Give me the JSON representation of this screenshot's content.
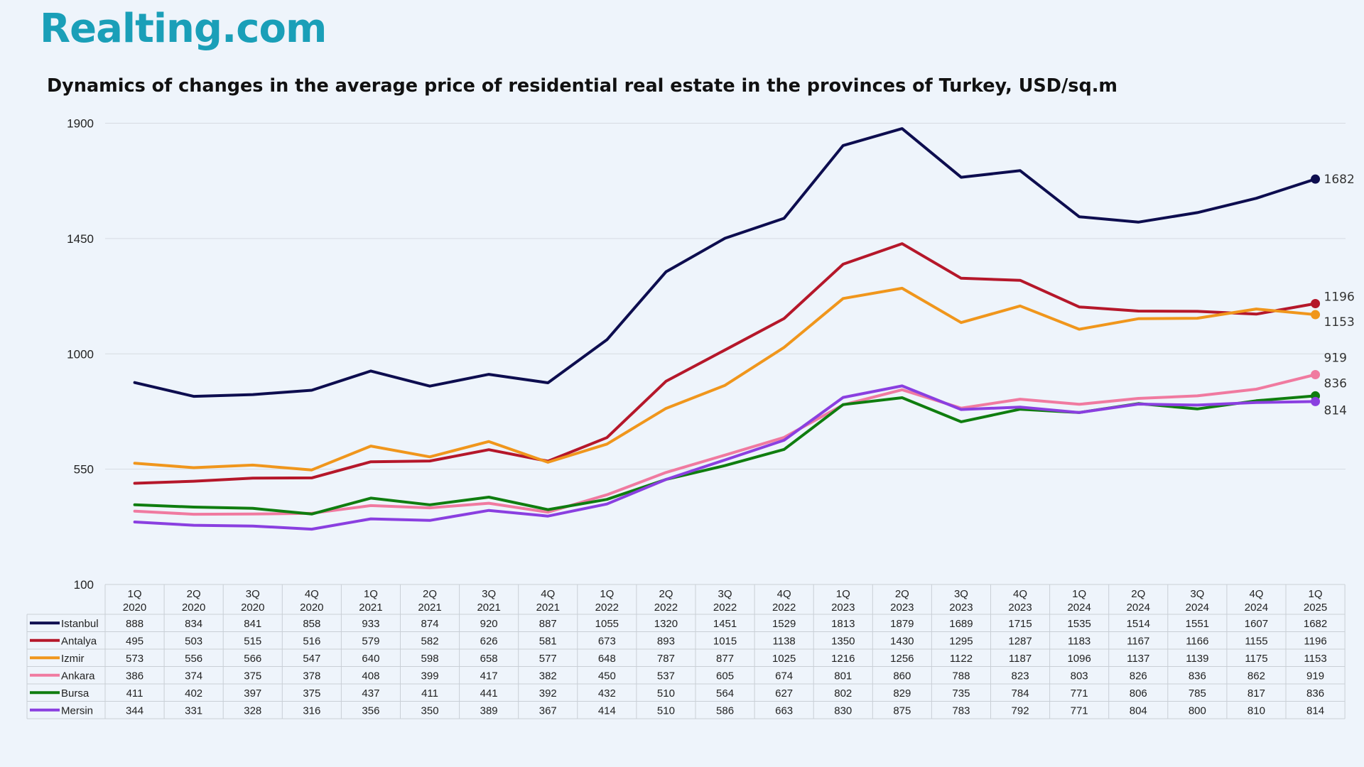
{
  "brand": {
    "logo_text": "Realting.com"
  },
  "chart_data": {
    "type": "line",
    "title": "Dynamics of changes in the average price of residential real estate in the provinces of Turkey, USD/sq.m",
    "ylim": [
      100,
      1900
    ],
    "yticks": [
      100,
      550,
      1000,
      1450,
      1900
    ],
    "grid": true,
    "legend": "data-table",
    "categories": [
      [
        "1Q",
        "2020"
      ],
      [
        "2Q",
        "2020"
      ],
      [
        "3Q",
        "2020"
      ],
      [
        "4Q",
        "2020"
      ],
      [
        "1Q",
        "2021"
      ],
      [
        "2Q",
        "2021"
      ],
      [
        "3Q",
        "2021"
      ],
      [
        "4Q",
        "2021"
      ],
      [
        "1Q",
        "2022"
      ],
      [
        "2Q",
        "2022"
      ],
      [
        "3Q",
        "2022"
      ],
      [
        "4Q",
        "2022"
      ],
      [
        "1Q",
        "2023"
      ],
      [
        "2Q",
        "2023"
      ],
      [
        "3Q",
        "2023"
      ],
      [
        "4Q",
        "2023"
      ],
      [
        "1Q",
        "2024"
      ],
      [
        "2Q",
        "2024"
      ],
      [
        "3Q",
        "2024"
      ],
      [
        "4Q",
        "2024"
      ],
      [
        "1Q",
        "2025"
      ]
    ],
    "series": [
      {
        "name": "Istanbul",
        "color": "#0d0d4f",
        "end_label": "1682",
        "values": [
          888,
          834,
          841,
          858,
          933,
          874,
          920,
          887,
          1055,
          1320,
          1451,
          1529,
          1813,
          1879,
          1689,
          1715,
          1535,
          1514,
          1551,
          1607,
          1682
        ]
      },
      {
        "name": "Antalya",
        "color": "#b5172a",
        "end_label": "1196",
        "values": [
          495,
          503,
          515,
          516,
          579,
          582,
          626,
          581,
          673,
          893,
          1015,
          1138,
          1350,
          1430,
          1295,
          1287,
          1183,
          1167,
          1166,
          1155,
          1196
        ]
      },
      {
        "name": "Izmir",
        "color": "#f0961c",
        "end_label": "1153",
        "values": [
          573,
          556,
          566,
          547,
          640,
          598,
          658,
          577,
          648,
          787,
          877,
          1025,
          1216,
          1256,
          1122,
          1187,
          1096,
          1137,
          1139,
          1175,
          1153
        ]
      },
      {
        "name": "Ankara",
        "color": "#f07aa0",
        "end_label": "919",
        "values": [
          386,
          374,
          375,
          378,
          408,
          399,
          417,
          382,
          450,
          537,
          605,
          674,
          801,
          860,
          788,
          823,
          803,
          826,
          836,
          862,
          919
        ]
      },
      {
        "name": "Bursa",
        "color": "#0f7d0f",
        "end_label": "836",
        "values": [
          411,
          402,
          397,
          375,
          437,
          411,
          441,
          392,
          432,
          510,
          564,
          627,
          802,
          829,
          735,
          784,
          771,
          806,
          785,
          817,
          836
        ]
      },
      {
        "name": "Mersin",
        "color": "#8a3fe0",
        "end_label": "814",
        "values": [
          344,
          331,
          328,
          316,
          356,
          350,
          389,
          367,
          414,
          510,
          586,
          663,
          830,
          875,
          783,
          792,
          771,
          804,
          800,
          810,
          814
        ]
      }
    ]
  }
}
